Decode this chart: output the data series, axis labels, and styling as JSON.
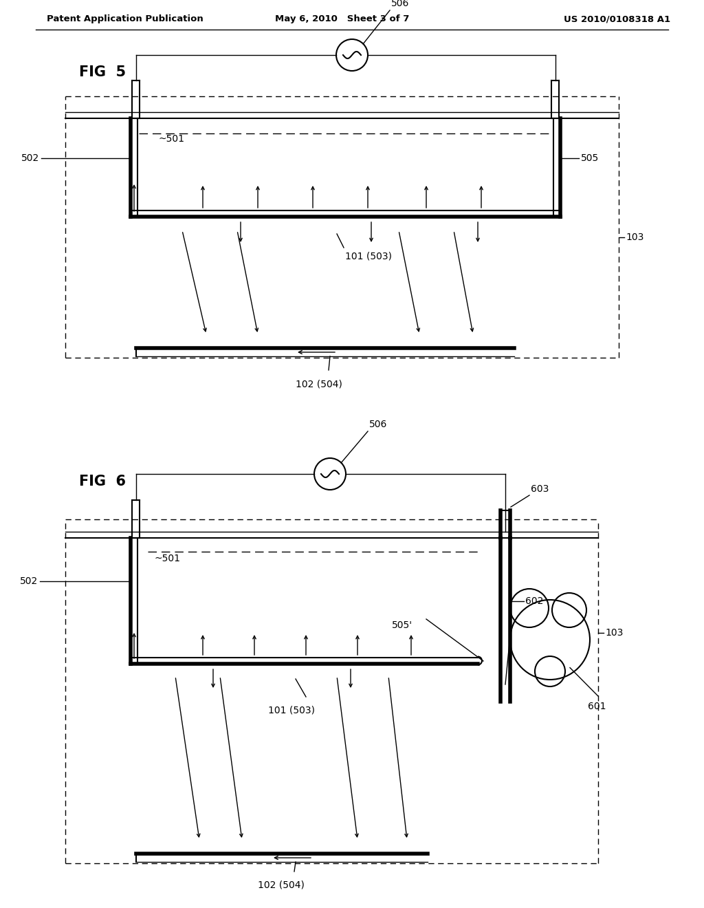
{
  "header_left": "Patent Application Publication",
  "header_mid": "May 6, 2010   Sheet 3 of 7",
  "header_right": "US 2010/0108318 A1",
  "fig5_label": "FIG  5",
  "fig6_label": "FIG  6",
  "bg_color": "#ffffff",
  "line_color": "#000000"
}
